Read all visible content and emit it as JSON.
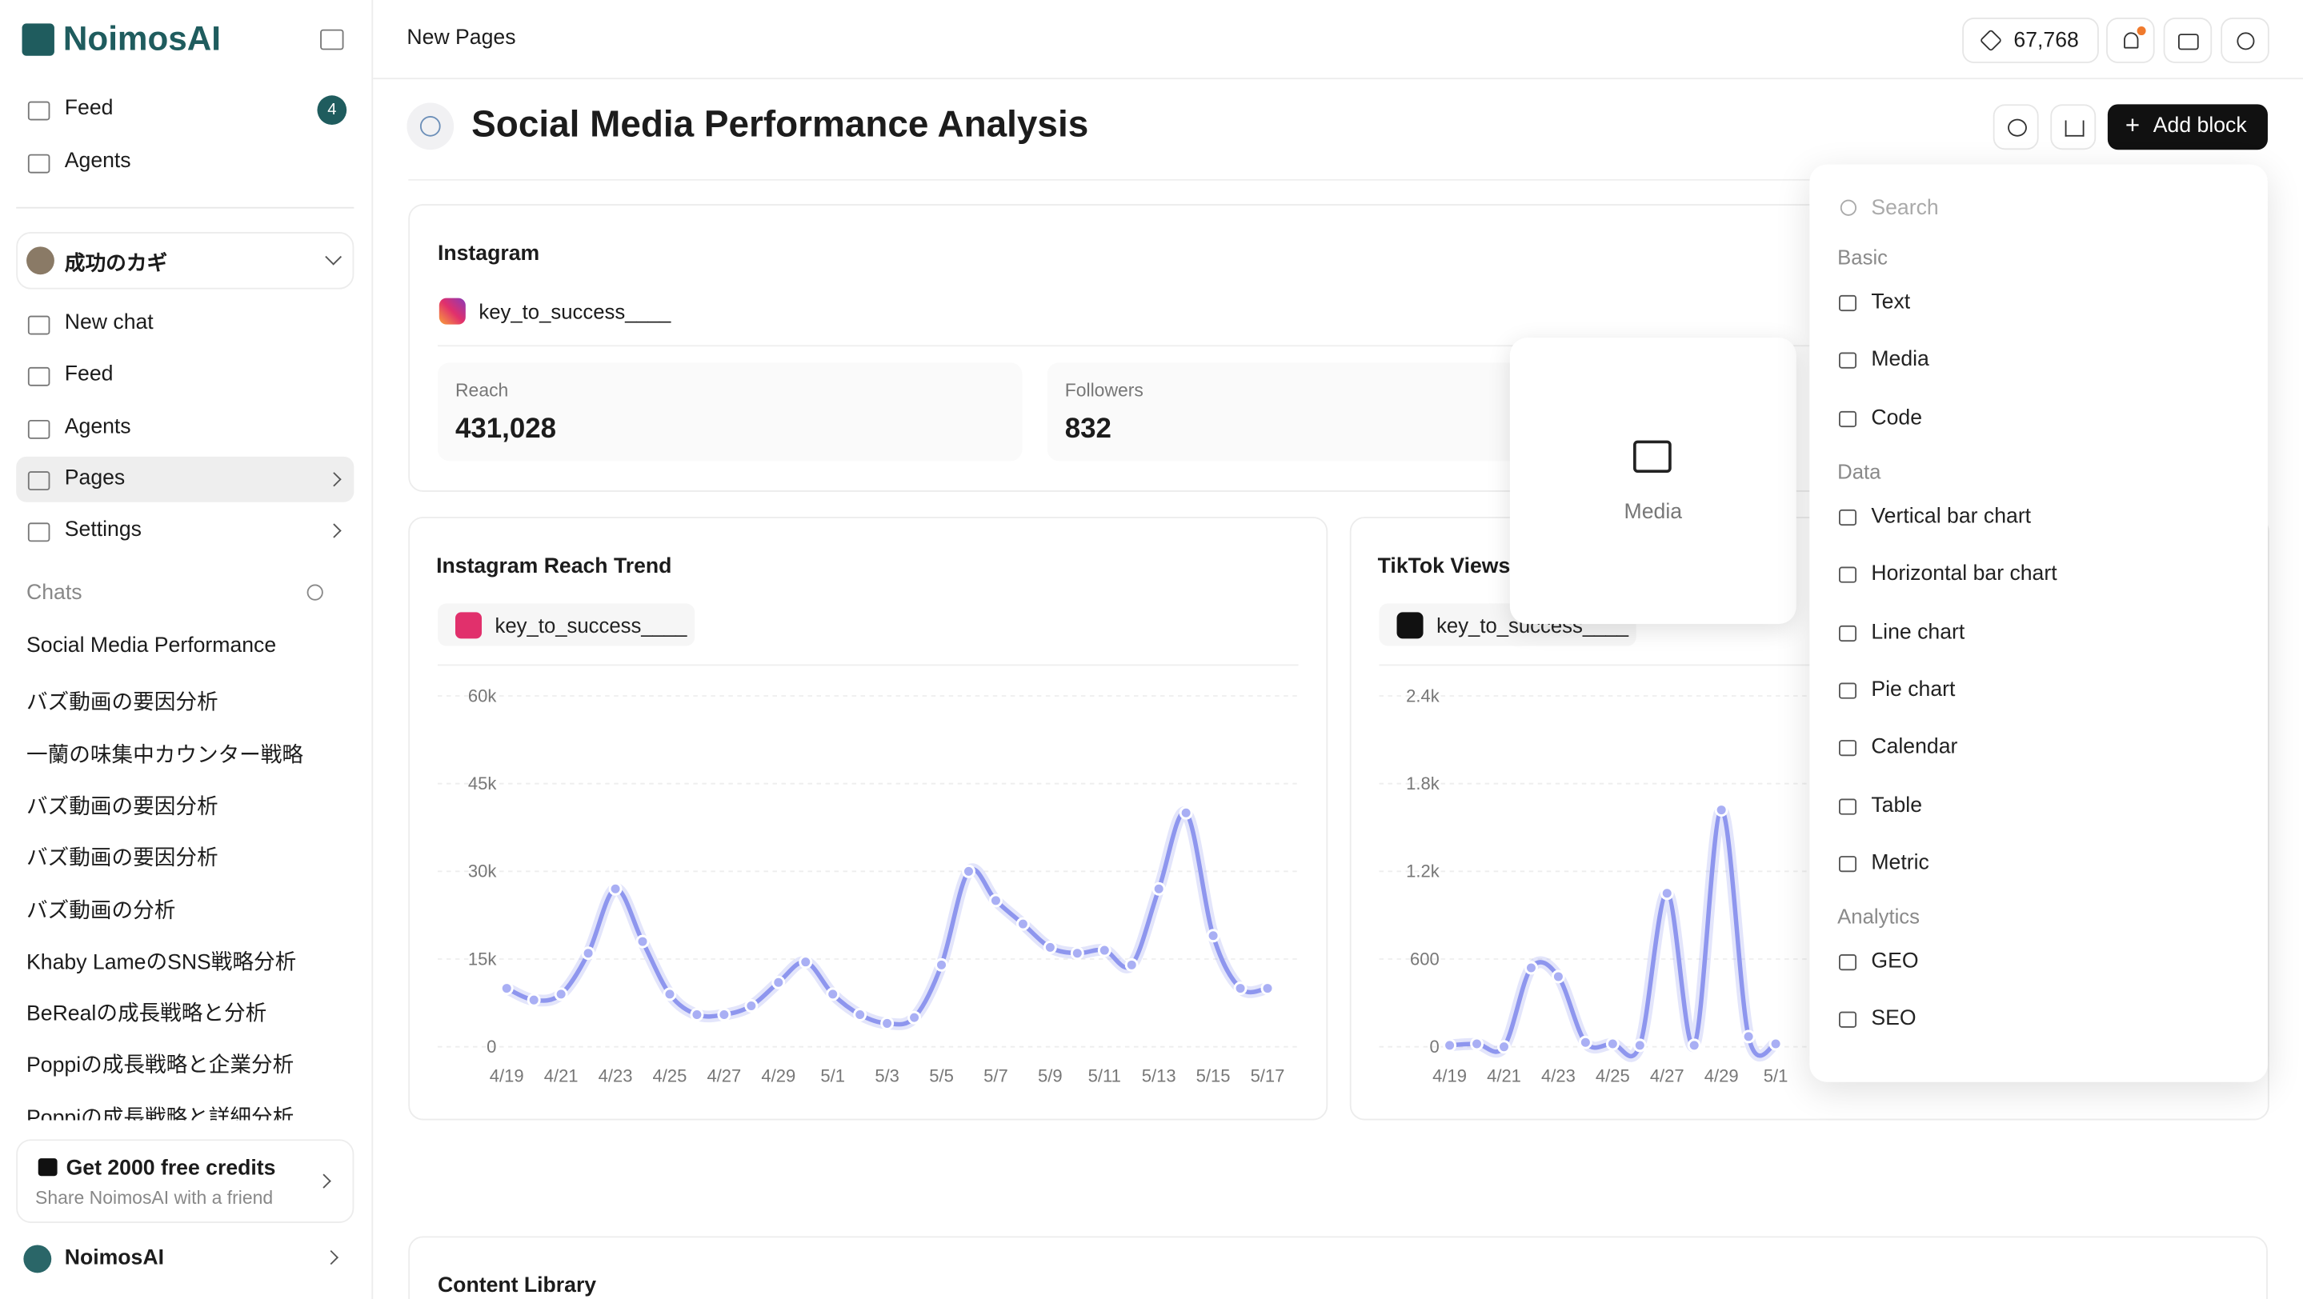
{
  "sidebar": {
    "brand": "NoimosAI",
    "top_nav": [
      {
        "label": "Feed",
        "badge": "4"
      },
      {
        "label": "Agents"
      }
    ],
    "workspace": "成功のカギ",
    "nav": [
      "New chat",
      "Feed",
      "Agents",
      "Pages",
      "Settings"
    ],
    "chats_heading": "Chats",
    "chats": [
      "Social Media Performance",
      "バズ動画の要因分析",
      "一蘭の味集中カウンター戦略",
      "バズ動画の要因分析",
      "バズ動画の要因分析",
      "バズ動画の分析",
      "Khaby LameのSNS戦略分析",
      "BeRealの成長戦略と分析",
      "Poppiの成長戦略と企業分析",
      "Poppiの成長戦略と詳細分析"
    ],
    "promo": {
      "title": "Get 2000 free credits",
      "subtitle": "Share NoimosAI with a friend"
    },
    "account": "NoimosAI"
  },
  "header": {
    "breadcrumb": "New Pages",
    "credits": "67,768"
  },
  "page": {
    "title": "Social Media Performance Analysis",
    "add_block": "Add block"
  },
  "instagram_card": {
    "title": "Instagram",
    "account": "key_to_success____",
    "metrics": [
      {
        "label": "Reach",
        "value": "431,028"
      },
      {
        "label": "Followers",
        "value": "832"
      }
    ]
  },
  "charts": [
    {
      "type": "line",
      "title": "Instagram Reach Trend",
      "account": "key_to_success____",
      "color": "#8e96ee",
      "x": [
        "4/19",
        null,
        "4/21",
        null,
        "4/23",
        null,
        "4/25",
        null,
        "4/27",
        null,
        "4/29",
        null,
        "5/1",
        null,
        "5/3",
        null,
        "5/5",
        null,
        "5/7",
        null,
        "5/9",
        null,
        "5/11",
        null,
        "5/13",
        null,
        "5/15",
        null,
        "5/17"
      ],
      "values": [
        10000,
        8000,
        9000,
        16000,
        27000,
        18000,
        9000,
        5500,
        5500,
        7000,
        11000,
        14500,
        9000,
        5500,
        4000,
        5000,
        14000,
        30000,
        25000,
        21000,
        17000,
        16000,
        16500,
        14000,
        27000,
        40000,
        19000,
        10000,
        10000
      ],
      "ylim": [
        0,
        60000
      ],
      "yticks": [
        0,
        {
          "value": 15000,
          "label": "15k"
        },
        {
          "value": 30000,
          "label": "30k"
        },
        {
          "value": 45000,
          "label": "45k"
        },
        {
          "value": 60000,
          "label": "60k"
        }
      ],
      "grid": true
    },
    {
      "type": "line",
      "title": "TikTok Views",
      "account": "key_to_success____",
      "color": "#8e96ee",
      "x": [
        "4/19",
        null,
        "4/21",
        null,
        "4/23",
        null,
        "4/25",
        null,
        "4/27",
        null,
        "4/29",
        null,
        "5/1"
      ],
      "values": [
        10,
        20,
        0,
        540,
        480,
        30,
        20,
        10,
        1050,
        10,
        1620,
        70,
        20
      ],
      "ylim": [
        0,
        2400
      ],
      "yticks": [
        0,
        600,
        {
          "value": 1200,
          "label": "1.2k"
        },
        {
          "value": 1800,
          "label": "1.8k"
        },
        {
          "value": 2400,
          "label": "2.4k"
        }
      ],
      "grid": true
    }
  ],
  "media_preview": "Media",
  "menu": {
    "search_placeholder": "Search",
    "groups": [
      {
        "heading": "Basic",
        "items": [
          "Text",
          "Media",
          "Code"
        ]
      },
      {
        "heading": "Data",
        "items": [
          "Vertical bar chart",
          "Horizontal bar chart",
          "Line chart",
          "Pie chart",
          "Calendar",
          "Table",
          "Metric"
        ]
      },
      {
        "heading": "Analytics",
        "items": [
          "GEO",
          "SEO"
        ]
      }
    ]
  },
  "content_library": "Content Library"
}
